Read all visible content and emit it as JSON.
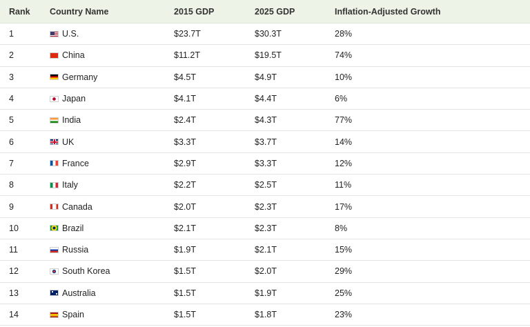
{
  "table": {
    "headers": {
      "rank": "Rank",
      "country": "Country Name",
      "gdp_2015": "2015 GDP",
      "gdp_2025": "2025 GDP",
      "growth": "Inflation-Adjusted Growth"
    },
    "rows": [
      {
        "rank": "1",
        "flag_icon": "us-flag-icon",
        "country": "U.S.",
        "gdp_2015": "$23.7T",
        "gdp_2025": "$30.3T",
        "growth": "28%"
      },
      {
        "rank": "2",
        "flag_icon": "china-flag-icon",
        "country": "China",
        "gdp_2015": "$11.2T",
        "gdp_2025": "$19.5T",
        "growth": "74%"
      },
      {
        "rank": "3",
        "flag_icon": "germany-flag-icon",
        "country": "Germany",
        "gdp_2015": "$4.5T",
        "gdp_2025": "$4.9T",
        "growth": "10%"
      },
      {
        "rank": "4",
        "flag_icon": "japan-flag-icon",
        "country": "Japan",
        "gdp_2015": "$4.1T",
        "gdp_2025": "$4.4T",
        "growth": "6%"
      },
      {
        "rank": "5",
        "flag_icon": "india-flag-icon",
        "country": "India",
        "gdp_2015": "$2.4T",
        "gdp_2025": "$4.3T",
        "growth": "77%"
      },
      {
        "rank": "6",
        "flag_icon": "uk-flag-icon",
        "country": "UK",
        "gdp_2015": "$3.3T",
        "gdp_2025": "$3.7T",
        "growth": "14%"
      },
      {
        "rank": "7",
        "flag_icon": "france-flag-icon",
        "country": "France",
        "gdp_2015": "$2.9T",
        "gdp_2025": "$3.3T",
        "growth": "12%"
      },
      {
        "rank": "8",
        "flag_icon": "italy-flag-icon",
        "country": "Italy",
        "gdp_2015": "$2.2T",
        "gdp_2025": "$2.5T",
        "growth": "11%"
      },
      {
        "rank": "9",
        "flag_icon": "canada-flag-icon",
        "country": "Canada",
        "gdp_2015": "$2.0T",
        "gdp_2025": "$2.3T",
        "growth": "17%"
      },
      {
        "rank": "10",
        "flag_icon": "brazil-flag-icon",
        "country": "Brazil",
        "gdp_2015": "$2.1T",
        "gdp_2025": "$2.3T",
        "growth": "8%"
      },
      {
        "rank": "11",
        "flag_icon": "russia-flag-icon",
        "country": "Russia",
        "gdp_2015": "$1.9T",
        "gdp_2025": "$2.1T",
        "growth": "15%"
      },
      {
        "rank": "12",
        "flag_icon": "south-korea-flag-icon",
        "country": "South Korea",
        "gdp_2015": "$1.5T",
        "gdp_2025": "$2.0T",
        "growth": "29%"
      },
      {
        "rank": "13",
        "flag_icon": "australia-flag-icon",
        "country": "Australia",
        "gdp_2015": "$1.5T",
        "gdp_2025": "$1.9T",
        "growth": "25%"
      },
      {
        "rank": "14",
        "flag_icon": "spain-flag-icon",
        "country": "Spain",
        "gdp_2015": "$1.5T",
        "gdp_2025": "$1.8T",
        "growth": "23%"
      }
    ]
  },
  "colors": {
    "header_background": "#edf3e6",
    "row_divider": "#e3e3e3"
  }
}
